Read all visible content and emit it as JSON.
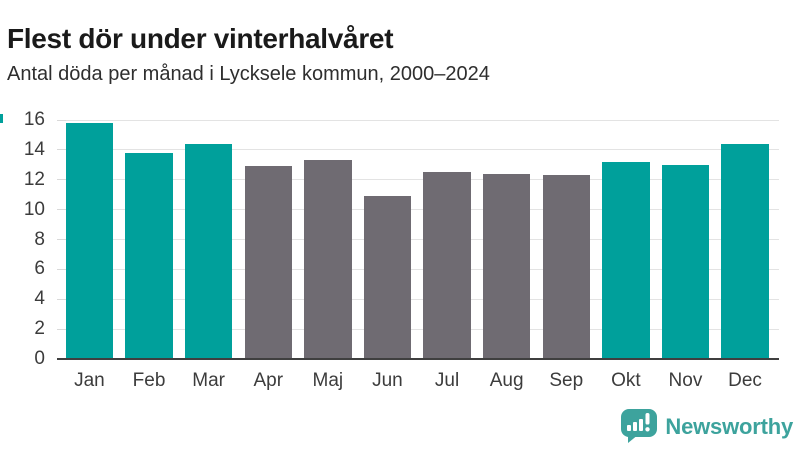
{
  "header": {
    "title": "Flest dör under vinterhalvåret",
    "subtitle": "Antal döda per månad i Lycksele kommun, 2000–2024"
  },
  "chart_data": {
    "type": "bar",
    "title": "Flest dör under vinterhalvåret",
    "subtitle": "Antal döda per månad i Lycksele kommun, 2000–2024",
    "categories": [
      "Jan",
      "Feb",
      "Mar",
      "Apr",
      "Maj",
      "Jun",
      "Jul",
      "Aug",
      "Sep",
      "Okt",
      "Nov",
      "Dec"
    ],
    "values": [
      15.8,
      13.8,
      14.4,
      12.9,
      13.3,
      10.9,
      12.5,
      12.4,
      12.3,
      13.2,
      13.0,
      14.4
    ],
    "highlighted_months": [
      "Jan",
      "Feb",
      "Mar",
      "Okt",
      "Nov",
      "Dec"
    ],
    "xlabel": "",
    "ylabel": "",
    "ylim": [
      0,
      16
    ],
    "yticks": [
      0,
      2,
      4,
      6,
      8,
      10,
      12,
      14,
      16
    ],
    "grid": "horizontal",
    "legend": "none",
    "colors": {
      "highlight": "#00a09b",
      "default": "#6f6b72"
    }
  },
  "footer": {
    "brand": "Newsworthy",
    "brand_color": "#3da39d",
    "logo_icon": "speech-bubble-bar-chart-exclamation"
  }
}
